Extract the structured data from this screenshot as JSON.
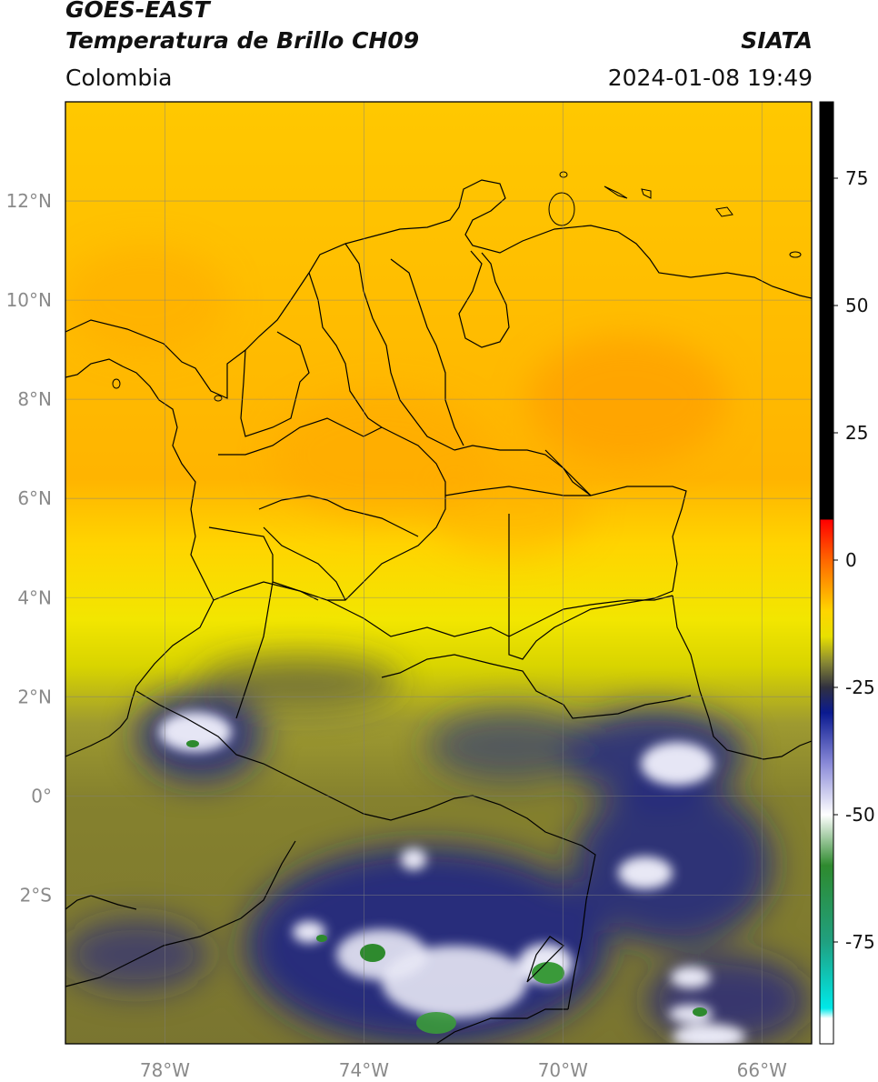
{
  "header": {
    "title_line1": "GOES-EAST",
    "title_line2": "Temperatura de Brillo CH09",
    "brand": "SIATA",
    "region": "Colombia",
    "timestamp": "2024-01-08 19:49"
  },
  "map": {
    "lon_range": [
      -80,
      -65
    ],
    "lat_range": [
      -5,
      14
    ],
    "lat_ticks": [
      {
        "lat": 12,
        "label": "12°N"
      },
      {
        "lat": 10,
        "label": "10°N"
      },
      {
        "lat": 8,
        "label": "8°N"
      },
      {
        "lat": 6,
        "label": "6°N"
      },
      {
        "lat": 4,
        "label": "4°N"
      },
      {
        "lat": 2,
        "label": "2°N"
      },
      {
        "lat": 0,
        "label": "0°"
      },
      {
        "lat": -2,
        "label": "2°S"
      }
    ],
    "lon_ticks": [
      {
        "lon": -78,
        "label": "78°W"
      },
      {
        "lon": -74,
        "label": "74°W"
      },
      {
        "lon": -70,
        "label": "70°W"
      },
      {
        "lon": -66,
        "label": "66°W"
      }
    ],
    "gridlines": true
  },
  "colorbar": {
    "range": [
      -95,
      90
    ],
    "ticks": [
      {
        "value": 75,
        "label": "75"
      },
      {
        "value": 50,
        "label": "50"
      },
      {
        "value": 25,
        "label": "25"
      },
      {
        "value": 0,
        "label": "0"
      },
      {
        "value": -25,
        "label": "-25"
      },
      {
        "value": -50,
        "label": "-50"
      },
      {
        "value": -75,
        "label": "-75"
      }
    ],
    "stops": [
      {
        "value": 90,
        "color": "#000000"
      },
      {
        "value": 8,
        "color": "#000000"
      },
      {
        "value": 7.9,
        "color": "#ff0000"
      },
      {
        "value": 0,
        "color": "#ff6600"
      },
      {
        "value": -10,
        "color": "#ffd500"
      },
      {
        "value": -15,
        "color": "#e8e000"
      },
      {
        "value": -20,
        "color": "#8a8a33"
      },
      {
        "value": -25,
        "color": "#303040"
      },
      {
        "value": -30,
        "color": "#0a1a90"
      },
      {
        "value": -40,
        "color": "#8a8ad8"
      },
      {
        "value": -50,
        "color": "#ffffff"
      },
      {
        "value": -60,
        "color": "#2e8a2e"
      },
      {
        "value": -75,
        "color": "#20a080"
      },
      {
        "value": -88,
        "color": "#00e8e8"
      },
      {
        "value": -90,
        "color": "#ffffff"
      },
      {
        "value": -95,
        "color": "#ffffff"
      }
    ]
  }
}
